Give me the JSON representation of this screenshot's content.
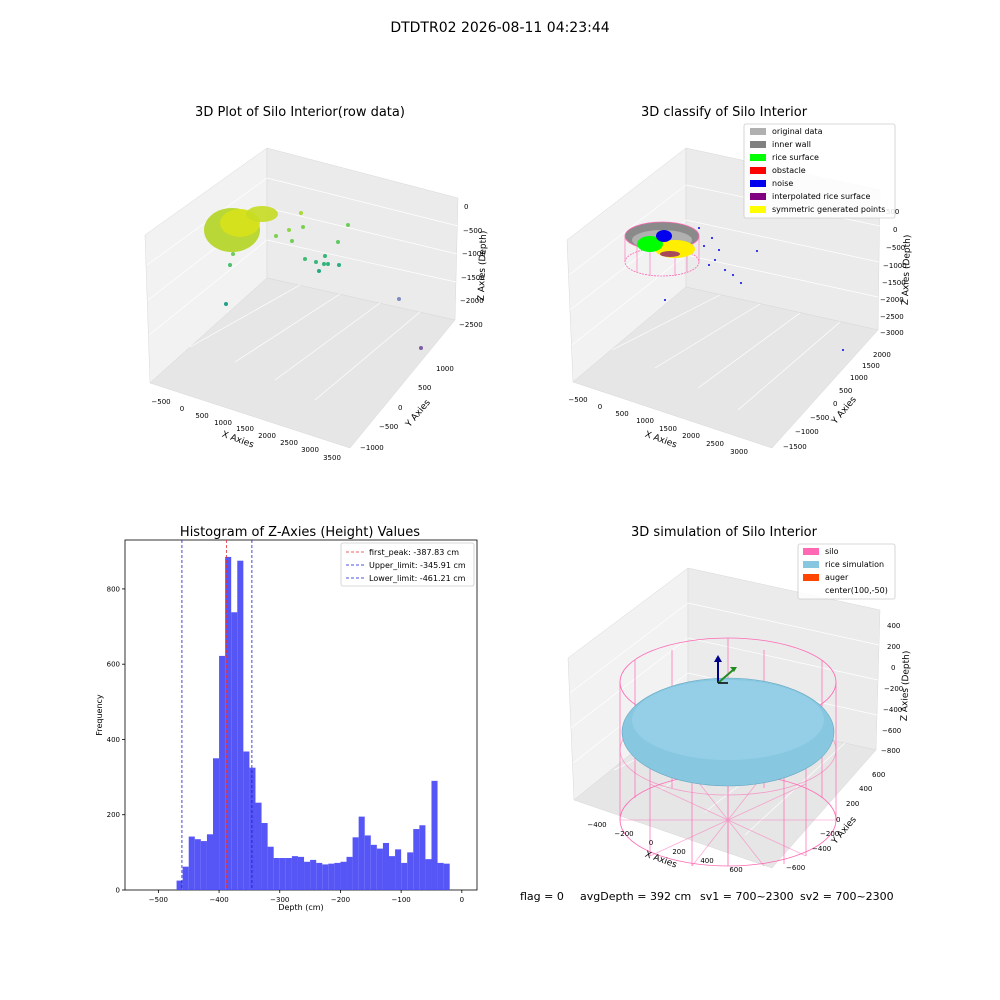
{
  "figure": {
    "suptitle": "DTDTR02 2026-08-11 04:23:44"
  },
  "colors": {
    "hist_fill": "#4d4df7",
    "red_line": "#e0303a",
    "blue_line": "#1a1acc",
    "silo": "#ff69b4",
    "rice": "#87c7e0",
    "auger": "#ff4500",
    "pane": "#f2f2f2"
  },
  "chart_data": [
    {
      "type": "scatter3d",
      "title": "3D Plot of Silo Interior(row data)",
      "xlabel": "X Axies",
      "ylabel": "Y Axies",
      "zlabel": "Z Axies (Depth)",
      "x_ticks": [
        "−500",
        "0",
        "500",
        "1000",
        "1500",
        "2000",
        "2500",
        "3000",
        "3500"
      ],
      "y_ticks": [
        "−1000",
        "−500",
        "0",
        "500",
        "1000"
      ],
      "z_ticks": [
        "0",
        "−500",
        "−1000",
        "−1500",
        "−2000",
        "−2500"
      ],
      "colormap": "viridis (by depth)"
    },
    {
      "type": "scatter3d",
      "title": "3D classify of Silo Interior",
      "xlabel": "X Axies",
      "ylabel": "Y Axies",
      "zlabel": "Z Axies (Depth)",
      "x_ticks": [
        "−500",
        "0",
        "500",
        "1000",
        "1500",
        "2000",
        "2500",
        "3000"
      ],
      "y_ticks": [
        "−1500",
        "−1000",
        "−500",
        "0",
        "500",
        "1000",
        "1500",
        "2000"
      ],
      "z_ticks": [
        "500",
        "0",
        "−500",
        "−1000",
        "−1500",
        "−2000",
        "−2500",
        "−3000"
      ],
      "legend": [
        {
          "label": "original data",
          "color": "#b0b0b0"
        },
        {
          "label": "inner wall",
          "color": "#808080"
        },
        {
          "label": "rice surface",
          "color": "#00ff00"
        },
        {
          "label": "obstacle",
          "color": "#ff0000"
        },
        {
          "label": "noise",
          "color": "#0000ee"
        },
        {
          "label": "interpolated rice surface",
          "color": "#800080"
        },
        {
          "label": "symmetric generated points",
          "color": "#ffff00"
        }
      ],
      "legend_position": "top-right"
    },
    {
      "type": "bar",
      "title": "Histogram of Z-Axies (Height) Values",
      "xlabel": "Depth (cm)",
      "ylabel": "Frequency",
      "xlim": [
        -555,
        25
      ],
      "ylim": [
        0,
        930
      ],
      "x_ticks": [
        {
          "value": -500,
          "label": "−500"
        },
        {
          "value": -400,
          "label": "−400"
        },
        {
          "value": -300,
          "label": "−300"
        },
        {
          "value": -200,
          "label": "−200"
        },
        {
          "value": -100,
          "label": "−100"
        },
        {
          "value": 0,
          "label": "0"
        }
      ],
      "y_ticks": [
        {
          "value": 0,
          "label": "0"
        },
        {
          "value": 200,
          "label": "200"
        },
        {
          "value": 400,
          "label": "400"
        },
        {
          "value": 600,
          "label": "600"
        },
        {
          "value": 800,
          "label": "800"
        }
      ],
      "bin_start": -470,
      "bin_width": 10,
      "values": [
        25,
        62,
        142,
        135,
        130,
        148,
        350,
        622,
        885,
        738,
        875,
        368,
        325,
        232,
        178,
        115,
        85,
        85,
        85,
        90,
        88,
        75,
        80,
        72,
        68,
        70,
        72,
        75,
        88,
        140,
        195,
        145,
        120,
        110,
        125,
        90,
        108,
        72,
        100,
        162,
        172,
        82,
        290,
        72,
        70
      ],
      "lines": [
        {
          "label": "first_peak: -387.83 cm",
          "x": -387.83,
          "color": "#e0303a"
        },
        {
          "label": "Upper_limit: -345.91 cm",
          "x": -345.91,
          "color": "#1a1acc"
        },
        {
          "label": "Lower_limit: -461.21 cm",
          "x": -461.21,
          "color": "#1a1acc"
        }
      ],
      "legend_position": "top-right"
    },
    {
      "type": "surface3d",
      "title": "3D simulation of Silo Interior",
      "xlabel": "X Axies",
      "ylabel": "Y Axies",
      "zlabel": "Z Axies (Depth)",
      "x_ticks": [
        "−400",
        "−200",
        "0",
        "200",
        "400",
        "600"
      ],
      "y_ticks": [
        "−600",
        "−400",
        "−200",
        "0",
        "200",
        "400",
        "600"
      ],
      "z_ticks": [
        "400",
        "200",
        "0",
        "−200",
        "−400",
        "−600",
        "−800"
      ],
      "legend": [
        {
          "label": "silo",
          "color": "#ff69b4"
        },
        {
          "label": "rice simulation",
          "color": "#87c7e0"
        },
        {
          "label": "auger",
          "color": "#ff4500"
        },
        {
          "label": "center(100,-50)",
          "color": ""
        }
      ],
      "legend_position": "top-right"
    }
  ],
  "status": {
    "flag": "flag = 0",
    "avg_depth": "avgDepth = 392 cm",
    "sv1": "sv1 = 700~2300",
    "sv2": "sv2 = 700~2300"
  }
}
